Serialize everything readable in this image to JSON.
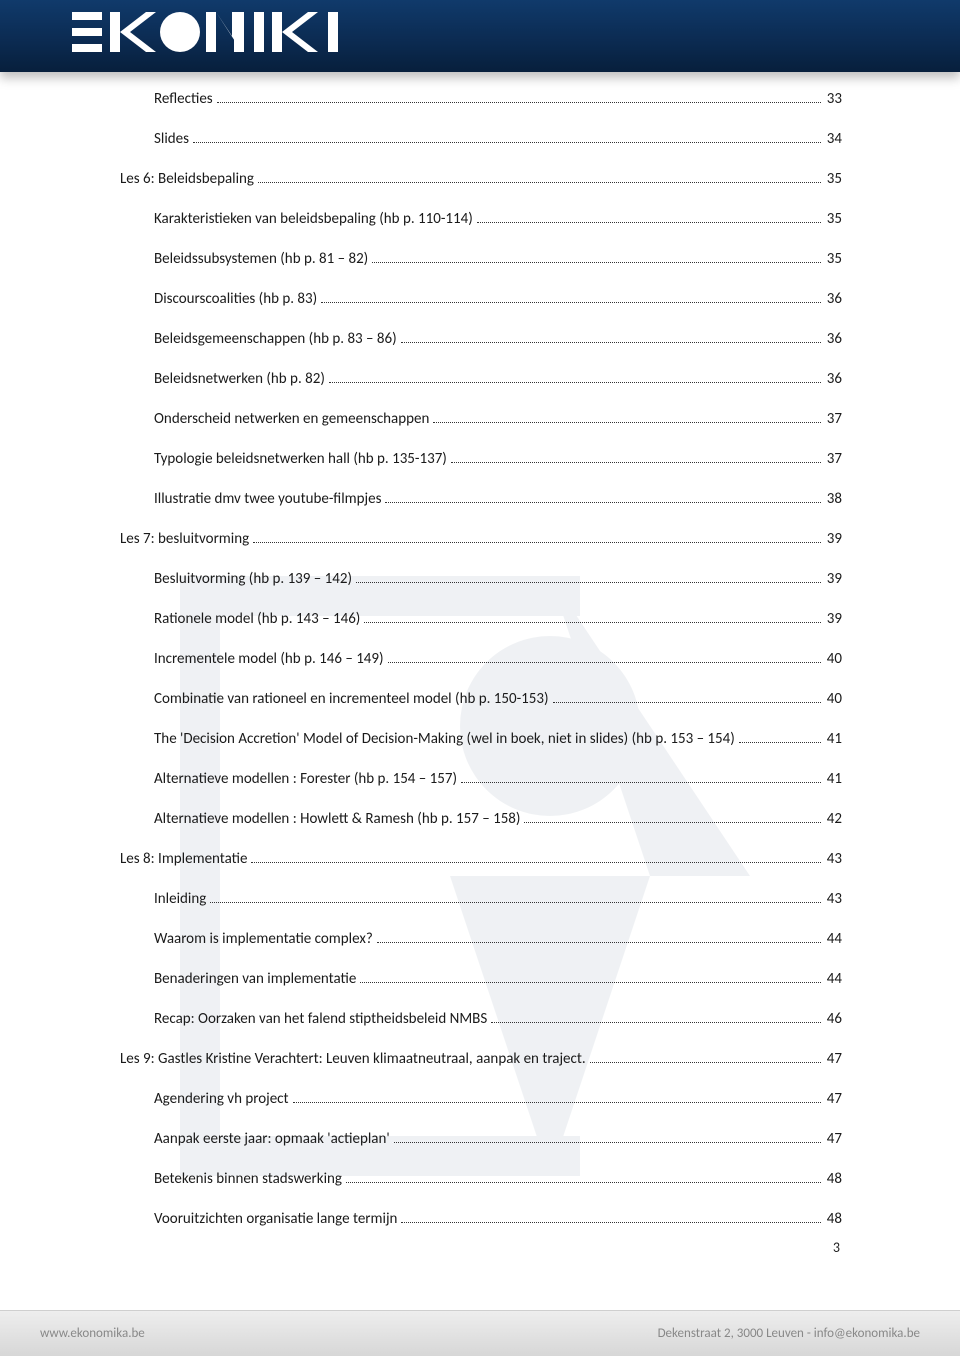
{
  "header": {
    "brand": "EKONIKI"
  },
  "page_number": "3",
  "footer": {
    "left": "www.ekonomika.be",
    "right": "Dekenstraat 2, 3000 Leuven - info@ekonomika.be"
  },
  "toc": [
    {
      "indent": 2,
      "label": "Reflecties",
      "page": "33"
    },
    {
      "indent": 2,
      "label": "Slides",
      "page": "34"
    },
    {
      "indent": 1,
      "label": "Les 6: Beleidsbepaling",
      "page": "35"
    },
    {
      "indent": 2,
      "label": "Karakteristieken van beleidsbepaling (hb p. 110-114)",
      "page": "35"
    },
    {
      "indent": 2,
      "label": "Beleidssubsystemen (hb p. 81 – 82)",
      "page": "35"
    },
    {
      "indent": 2,
      "label": "Discourscoalities (hb p. 83)",
      "page": "36"
    },
    {
      "indent": 2,
      "label": "Beleidsgemeenschappen (hb p. 83 – 86)",
      "page": "36"
    },
    {
      "indent": 2,
      "label": "Beleidsnetwerken (hb p. 82)",
      "page": "36"
    },
    {
      "indent": 2,
      "label": "Onderscheid netwerken en gemeenschappen",
      "page": "37"
    },
    {
      "indent": 2,
      "label": "Typologie beleidsnetwerken hall (hb p. 135-137)",
      "page": "37"
    },
    {
      "indent": 2,
      "label": "Illustratie dmv twee youtube-filmpjes",
      "page": "38"
    },
    {
      "indent": 1,
      "label": "Les 7: besluitvorming",
      "page": "39"
    },
    {
      "indent": 2,
      "label": "Besluitvorming (hb p. 139 – 142)",
      "page": "39"
    },
    {
      "indent": 2,
      "label": "Rationele model (hb p. 143 – 146)",
      "page": "39"
    },
    {
      "indent": 2,
      "label": "Incrementele model (hb p. 146 – 149)",
      "page": "40"
    },
    {
      "indent": 2,
      "label": "Combinatie van rationeel en incrementeel model (hb p. 150-153)",
      "page": "40"
    },
    {
      "indent": 2,
      "label": "The 'Decision Accretion' Model of Decision-Making (wel in boek, niet in slides) (hb p. 153 – 154)",
      "page": "41",
      "long": true
    },
    {
      "indent": 2,
      "label": "Alternatieve modellen : Forester (hb p. 154 – 157)",
      "page": "41"
    },
    {
      "indent": 2,
      "label": "Alternatieve modellen : Howlett & Ramesh (hb p. 157 – 158)",
      "page": "42"
    },
    {
      "indent": 1,
      "label": "Les 8: Implementatie",
      "page": "43"
    },
    {
      "indent": 2,
      "label": "Inleiding",
      "page": "43"
    },
    {
      "indent": 2,
      "label": "Waarom is implementatie complex?",
      "page": "44"
    },
    {
      "indent": 2,
      "label": "Benaderingen van implementatie",
      "page": "44"
    },
    {
      "indent": 2,
      "label": "Recap: Oorzaken van het falend stiptheidsbeleid NMBS",
      "page": "46"
    },
    {
      "indent": 1,
      "label": "Les 9: Gastles Kristine Verachtert: Leuven klimaatneutraal, aanpak en traject.",
      "page": "47"
    },
    {
      "indent": 2,
      "label": "Agendering vh project",
      "page": "47"
    },
    {
      "indent": 2,
      "label": "Aanpak eerste jaar: opmaak 'actieplan'",
      "page": "47"
    },
    {
      "indent": 2,
      "label": "Betekenis binnen stadswerking",
      "page": "48"
    },
    {
      "indent": 2,
      "label": "Vooruitzichten organisatie lange termijn",
      "page": "48"
    }
  ]
}
